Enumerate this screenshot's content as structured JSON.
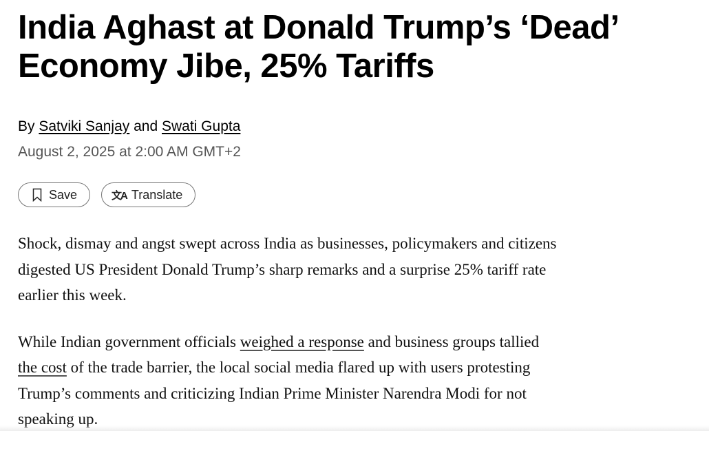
{
  "headline": "India Aghast at Donald Trump’s ‘Dead’ Economy Jibe, 25% Tariffs",
  "byline": {
    "prefix": "By",
    "author1": "Satviki Sanjay",
    "joiner": "and",
    "author2": "Swati Gupta"
  },
  "date": "August 2, 2025 at 2:00 AM GMT+2",
  "actions": {
    "save_label": "Save",
    "save_icon": "bookmark-icon",
    "translate_label": "Translate",
    "translate_icon": "translate-icon"
  },
  "body": {
    "p1": "Shock, dismay and angst swept across India as businesses, policymakers and citizens digested US President Donald Trump’s sharp remarks and a surprise 25% tariff rate earlier this week.",
    "p2_a": "While Indian government officials ",
    "p2_link1": "weighed a response",
    "p2_b": " and business groups tallied ",
    "p2_link2": "the cost",
    "p2_c": " of the trade barrier, the local social media flared up with users protesting Trump’s comments and criticizing Indian Prime Minister Narendra Modi for not speaking up."
  }
}
